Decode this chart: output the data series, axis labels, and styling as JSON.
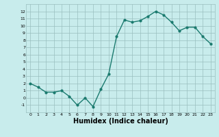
{
  "x": [
    0,
    1,
    2,
    3,
    4,
    5,
    6,
    7,
    8,
    9,
    10,
    11,
    12,
    13,
    14,
    15,
    16,
    17,
    18,
    19,
    20,
    21,
    22,
    23
  ],
  "y": [
    2.0,
    1.5,
    0.8,
    0.8,
    1.0,
    0.2,
    -1.0,
    0.0,
    -1.2,
    1.2,
    3.3,
    8.5,
    10.8,
    10.5,
    10.7,
    11.3,
    12.0,
    11.5,
    10.5,
    9.3,
    9.8,
    9.8,
    8.5,
    7.5
  ],
  "line_color": "#1a7a6e",
  "marker": "o",
  "markersize": 2.0,
  "linewidth": 1.0,
  "xlabel": "Humidex (Indice chaleur)",
  "xlabel_fontsize": 7,
  "bg_color": "#c8ecec",
  "grid_color": "#9abfbf",
  "xlim": [
    -0.5,
    23.5
  ],
  "ylim": [
    -2,
    13
  ],
  "yticks": [
    -1,
    0,
    1,
    2,
    3,
    4,
    5,
    6,
    7,
    8,
    9,
    10,
    11,
    12
  ],
  "xticks": [
    0,
    1,
    2,
    3,
    4,
    5,
    6,
    7,
    8,
    9,
    10,
    11,
    12,
    13,
    14,
    15,
    16,
    17,
    18,
    19,
    20,
    21,
    22,
    23
  ]
}
